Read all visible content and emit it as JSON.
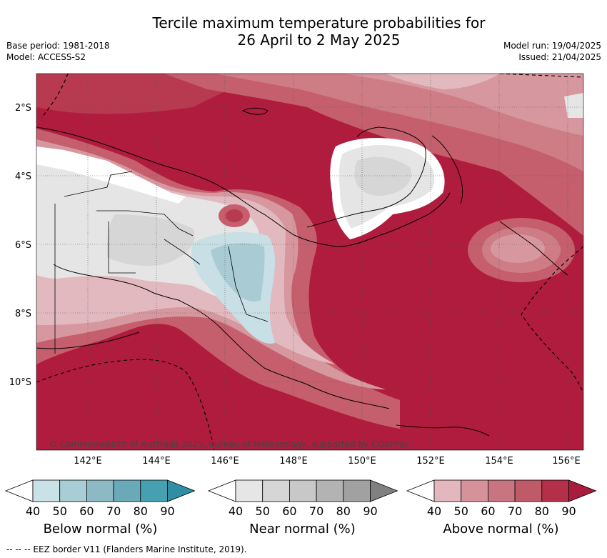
{
  "header": {
    "title_line1": "Tercile maximum temperature probabilities for",
    "title_line2": "26 April to 2 May 2025",
    "base_period": "Base period: 1981-2018",
    "model": "Model: ACCESS-S2",
    "model_run": "Model run: 19/04/2025",
    "issued": "Issued: 21/04/2025"
  },
  "map": {
    "lat_labels": [
      "2°S",
      "4°S",
      "6°S",
      "8°S",
      "10°S"
    ],
    "lon_labels": [
      "142°E",
      "144°E",
      "146°E",
      "148°E",
      "150°E",
      "152°E",
      "154°E",
      "156°E"
    ],
    "copyright": "© Commonwealth of Australia 2025, Bureau of Meteorology, supported by COSPPac"
  },
  "legends": [
    {
      "label": "Below normal (%)",
      "ticks": [
        "40",
        "50",
        "60",
        "70",
        "80",
        "90"
      ],
      "colors": [
        "#ffffff",
        "#c9e2e7",
        "#a9cdd5",
        "#8cb9c3",
        "#6aa9b8",
        "#45a0b2",
        "#2e8ea3"
      ]
    },
    {
      "label": "Near normal (%)",
      "ticks": [
        "40",
        "50",
        "60",
        "70",
        "80",
        "90"
      ],
      "colors": [
        "#ffffff",
        "#e6e6e6",
        "#d6d6d6",
        "#c8c8c8",
        "#b3b3b3",
        "#a1a1a1",
        "#808080"
      ]
    },
    {
      "label": "Above normal (%)",
      "ticks": [
        "40",
        "50",
        "60",
        "70",
        "80",
        "90"
      ],
      "colors": [
        "#ffffff",
        "#e2b7be",
        "#d5929b",
        "#c77580",
        "#bf5b69",
        "#b4304a",
        "#a81c3c"
      ]
    }
  ],
  "footnote": "--  --  -- EEZ border V11 (Flanders Marine Institute, 2019).",
  "palette": {
    "above_90": "#b01c3d",
    "above_80": "#b83a51",
    "above_70": "#c55f6d",
    "above_60": "#ce7d87",
    "above_50": "#d7979f",
    "above_40": "#e2b9bf",
    "near_40": "#e5e5e5",
    "near_50": "#d6d6d6",
    "below_50": "#c8e0e5",
    "below_60": "#a9cbd3"
  }
}
